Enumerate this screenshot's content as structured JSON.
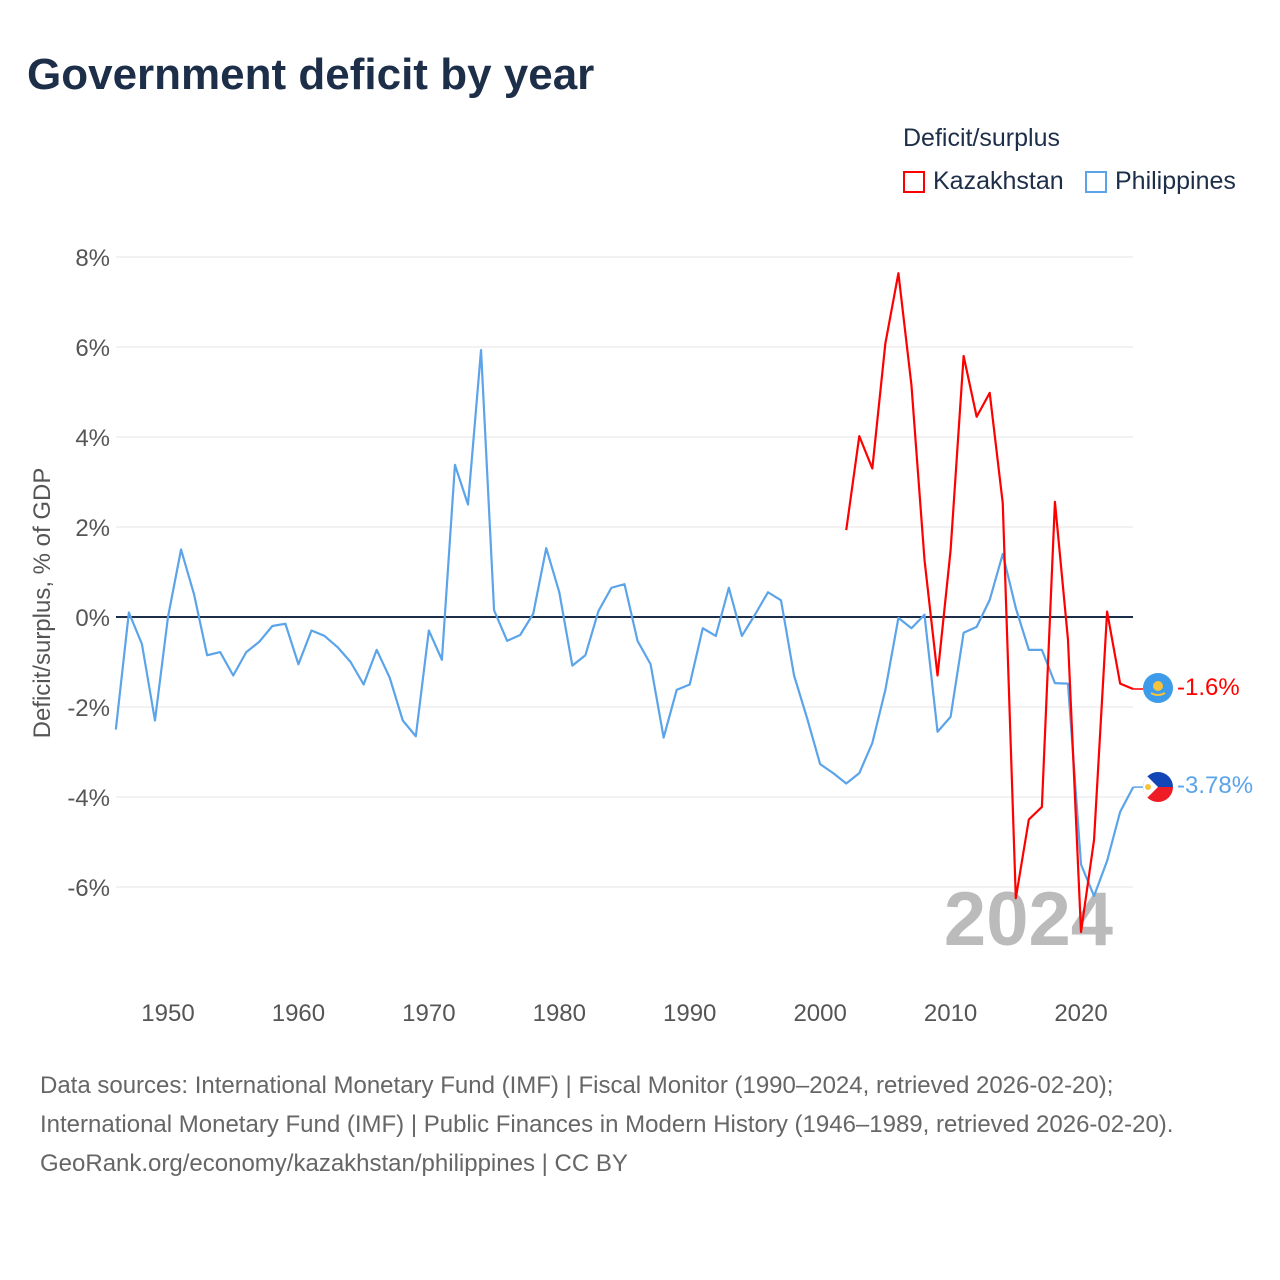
{
  "title": "Government deficit by year",
  "legend": {
    "title": "Deficit/surplus",
    "items": [
      {
        "label": "Kazakhstan",
        "color": "#ff0000"
      },
      {
        "label": "Philippines",
        "color": "#5ba4ea"
      }
    ]
  },
  "watermark_year": "2024",
  "end_labels": {
    "kazakhstan": "-1.6%",
    "philippines": "-3.78%"
  },
  "footer": {
    "sources": "Data sources: International Monetary Fund (IMF) | Fiscal Monitor (1990–2024, retrieved 2026-02-20); International Monetary Fund (IMF) | Public Finances in Modern History (1946–1989, retrieved 2026-02-20).",
    "credit": "GeoRank.org/economy/kazakhstan/philippines | CC BY"
  },
  "chart_data": {
    "type": "line",
    "title": "Government deficit by year",
    "xlabel": "",
    "ylabel": "Deficit/surplus, % of GDP",
    "xlim": [
      1946,
      2024
    ],
    "ylim": [
      -8,
      8
    ],
    "x_ticks": [
      1950,
      1960,
      1970,
      1980,
      1990,
      2000,
      2010,
      2020
    ],
    "y_ticks": [
      {
        "v": 8,
        "label": "8%"
      },
      {
        "v": 6,
        "label": "6%"
      },
      {
        "v": 4,
        "label": "4%"
      },
      {
        "v": 2,
        "label": "2%"
      },
      {
        "v": 0,
        "label": "0%"
      },
      {
        "v": -2,
        "label": "-2%"
      },
      {
        "v": -4,
        "label": "-4%"
      },
      {
        "v": -6,
        "label": "-6%"
      }
    ],
    "grid": true,
    "legend_position": "top-right",
    "series": [
      {
        "name": "Kazakhstan",
        "color": "#ff0000",
        "start_year": 2002,
        "values": [
          1.93,
          4.02,
          3.3,
          6.08,
          7.64,
          5.15,
          1.27,
          -1.3,
          1.48,
          5.8,
          4.45,
          4.98,
          2.53,
          -6.25,
          -4.5,
          -4.22,
          2.56,
          -0.5,
          -7.0,
          -4.95,
          0.12,
          -1.48,
          -1.6
        ]
      },
      {
        "name": "Philippines",
        "color": "#5ba4ea",
        "start_year": 1946,
        "values": [
          -2.5,
          0.1,
          -0.6,
          -2.3,
          0.0,
          1.5,
          0.5,
          -0.85,
          -0.78,
          -1.3,
          -0.78,
          -0.55,
          -0.2,
          -0.15,
          -1.05,
          -0.3,
          -0.42,
          -0.67,
          -1.0,
          -1.5,
          -0.73,
          -1.35,
          -2.3,
          -2.65,
          -0.3,
          -0.95,
          3.38,
          2.5,
          5.93,
          0.15,
          -0.53,
          -0.4,
          0.07,
          1.53,
          0.55,
          -1.08,
          -0.85,
          0.13,
          0.65,
          0.73,
          -0.53,
          -1.05,
          -2.68,
          -1.62,
          -1.5,
          -0.25,
          -0.42,
          0.65,
          -0.42,
          0.05,
          0.55,
          0.37,
          -1.3,
          -2.25,
          -3.27,
          -3.47,
          -3.7,
          -3.47,
          -2.8,
          -1.62,
          -0.02,
          -0.25,
          0.05,
          -2.55,
          -2.22,
          -0.35,
          -0.22,
          0.38,
          1.4,
          0.2,
          -0.73,
          -0.73,
          -1.47,
          -1.48,
          -5.5,
          -6.2,
          -5.42,
          -4.33,
          -3.78
        ]
      }
    ]
  }
}
